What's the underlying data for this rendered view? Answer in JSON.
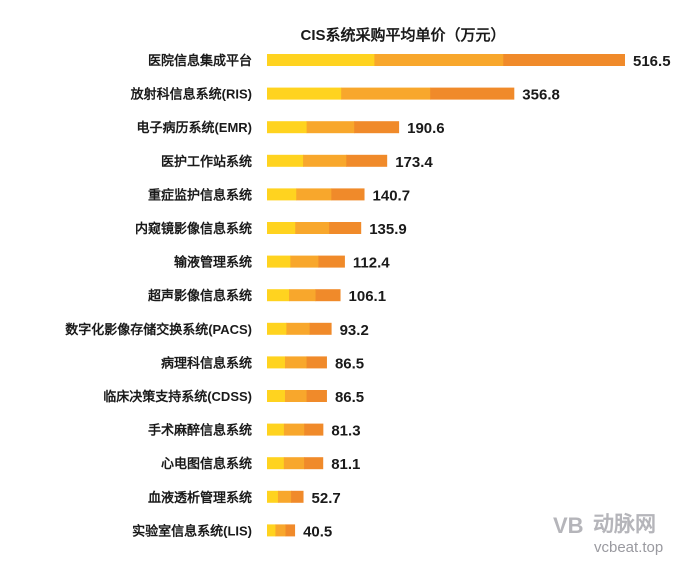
{
  "chart_data": {
    "type": "bar",
    "orientation": "horizontal",
    "title": "CIS系统采购平均单价（万元）",
    "categories": [
      "医院信息集成平台",
      "放射科信息系统(RIS)",
      "电子病历系统(EMR)",
      "医护工作站系统",
      "重症监护信息系统",
      "内窥镜影像信息系统",
      "输液管理系统",
      "超声影像信息系统",
      "数字化影像存储交换系统(PACS)",
      "病理科信息系统",
      "临床决策支持系统(CDSS)",
      "手术麻醉信息系统",
      "心电图信息系统",
      "血液透析管理系统",
      "实验室信息系统(LIS)"
    ],
    "values": [
      516.5,
      356.8,
      190.6,
      173.4,
      140.7,
      135.9,
      112.4,
      106.1,
      93.2,
      86.5,
      86.5,
      81.3,
      81.1,
      52.7,
      40.5
    ],
    "value_labels": [
      "516.5",
      "356.8",
      "190.6",
      "173.4",
      "140.7",
      "135.9",
      "112.4",
      "106.1",
      "93.2",
      "86.5",
      "86.5",
      "81.3",
      "81.1",
      "52.7",
      "40.5"
    ],
    "xlim": [
      0,
      516.5
    ],
    "grid": false,
    "legend": "none",
    "colors": [
      "#FFD31F",
      "#F8A72C",
      "#F08A2A"
    ]
  },
  "watermark": {
    "logo": "VB",
    "name_cn": "动脉网",
    "site": "vcbeat.top"
  }
}
